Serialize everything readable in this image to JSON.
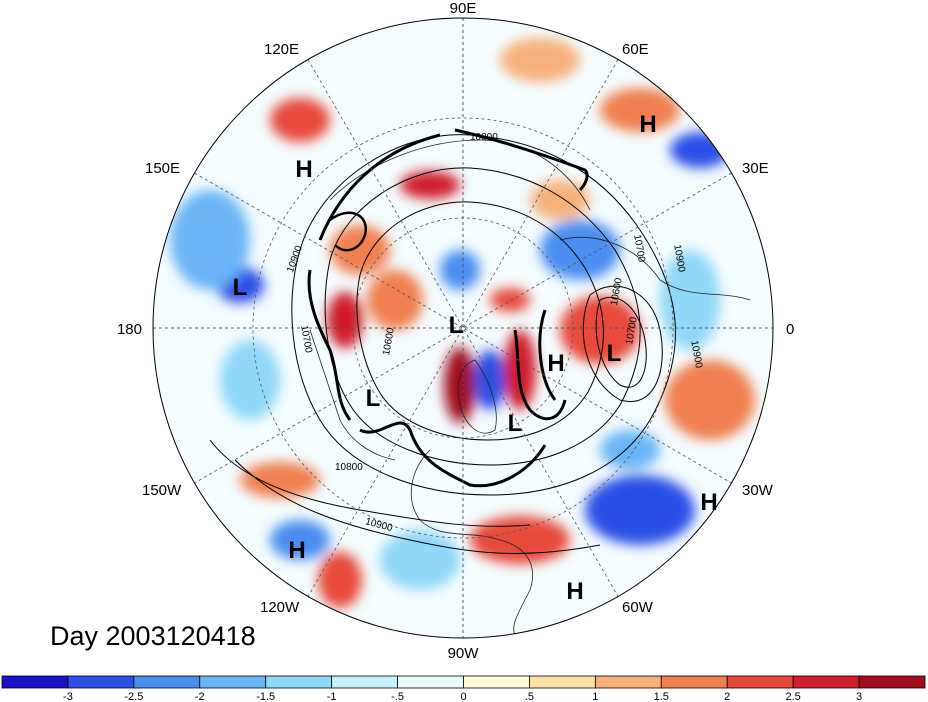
{
  "title": "Day 2003120418",
  "lon_labels": {
    "top": "90E",
    "bottom": "90W",
    "left": "180",
    "right": "0",
    "ne": "60E",
    "nw": "120E",
    "e_upper": "30E",
    "w_upper": "150E",
    "e_lower": "30W",
    "w_lower": "150W",
    "se": "60W",
    "sw": "120W"
  },
  "contour_labels": [
    "10800",
    "10900",
    "10700",
    "10600",
    "10900",
    "10700",
    "10800",
    "10900",
    "10900",
    "10700",
    "10600"
  ],
  "pressure_centers": [
    {
      "type": "H",
      "label": "H"
    },
    {
      "type": "H",
      "label": "H"
    },
    {
      "type": "L",
      "label": "L"
    },
    {
      "type": "L",
      "label": "L"
    },
    {
      "type": "H",
      "label": "H"
    },
    {
      "type": "L",
      "label": "L"
    },
    {
      "type": "L",
      "label": "L"
    },
    {
      "type": "L",
      "label": "L"
    },
    {
      "type": "H",
      "label": "H"
    },
    {
      "type": "H",
      "label": "H"
    },
    {
      "type": "H",
      "label": "H"
    }
  ],
  "colorbar": {
    "colors": [
      "#1a10c8",
      "#2c50e6",
      "#4a8ef0",
      "#6ab5f6",
      "#8ed8f8",
      "#c6f2fb",
      "#e8fbfd",
      "#fffad8",
      "#fde2a6",
      "#f7b07a",
      "#f08050",
      "#e84a3a",
      "#d01e2a",
      "#a20d1e"
    ],
    "ticks": [
      "-3",
      "-2.5",
      "-2",
      "-1.5",
      "-1",
      "-.5",
      "0",
      ".5",
      "1",
      "1.5",
      "2",
      "2.5",
      "3"
    ]
  }
}
